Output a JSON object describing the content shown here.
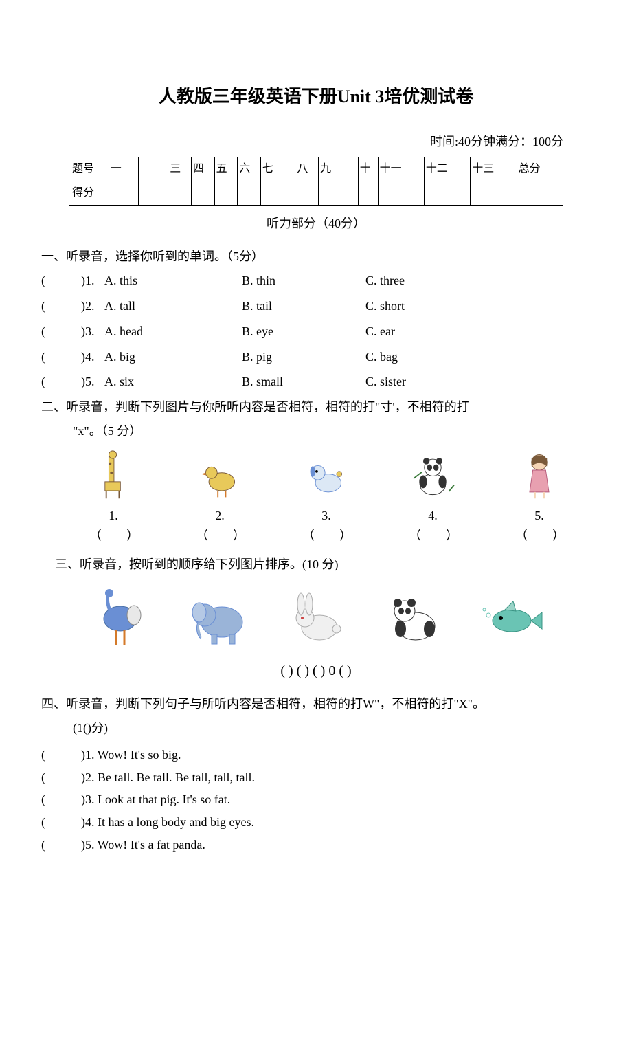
{
  "title": "人教版三年级英语下册Unit 3培优测试卷",
  "time_score": "时间:40分钟满分：100分",
  "score_table": {
    "row1_label": "题号",
    "cols": [
      "一",
      "",
      "三",
      "四",
      "五",
      "六",
      "七",
      "八",
      "九",
      "十",
      "十一",
      "十二",
      "十三",
      "总分"
    ],
    "row2_label": "得分"
  },
  "listening_label": "听力部分（40分）",
  "sec1": {
    "heading": "一、听录音，选择你听到的单词。（5分）",
    "items": [
      {
        "n": "1.",
        "a": "A. this",
        "b": "B. thin",
        "c": "C. three"
      },
      {
        "n": "2.",
        "a": "A. tall",
        "b": "B. tail",
        "c": "C. short"
      },
      {
        "n": "3.",
        "a": "A. head",
        "b": "B. eye",
        "c": "C. ear"
      },
      {
        "n": "4.",
        "a": "A. big",
        "b": "B. pig",
        "c": "C. bag"
      },
      {
        "n": "5.",
        "a": "A. six",
        "b": "B. small",
        "c": "C. sister"
      }
    ]
  },
  "sec2": {
    "heading": "二、听录音，判断下列图片与你所听内容是否相符，相符的打\"寸'，不相符的打",
    "sub": "\"x\"。（5 分）",
    "nums": [
      "1.",
      "2.",
      "3.",
      "4.",
      "5."
    ],
    "parens": [
      "（　　）",
      "（　　）",
      "（　　）",
      "（　　）",
      "（　　）"
    ],
    "images": [
      "giraffe",
      "duck",
      "dog",
      "panda-sitting",
      "girl"
    ]
  },
  "sec3": {
    "heading": "三、听录音，按听到的顺序给下列图片排序。(10 分)",
    "parens": "( ) ( ) ( ) 0 ( )",
    "images": [
      "ostrich",
      "elephant",
      "rabbit",
      "panda",
      "fish"
    ]
  },
  "sec4": {
    "heading": "四、听录音，判断下列句子与所听内容是否相符，相符的打W\"，不相符的打\"X\"。",
    "sub": "(1()分)",
    "items": [
      {
        "n": "1.",
        "text": "Wow! It's so big."
      },
      {
        "n": "2.",
        "text": "Be tall. Be tall. Be tall, tall, tall."
      },
      {
        "n": "3.",
        "text": "Look at that pig. It's so fat."
      },
      {
        "n": "4.",
        "text": "It has a long body and big eyes."
      },
      {
        "n": "5.",
        "text": "Wow! It's a fat panda."
      }
    ]
  },
  "colors": {
    "background": "#ffffff",
    "text": "#000000",
    "border": "#000000",
    "pic_blue": "#6a8fd4",
    "pic_yellow": "#e8c95a",
    "pic_gray": "#888888",
    "pic_pink": "#e8a0b0",
    "pic_brown": "#7a5a3a"
  }
}
